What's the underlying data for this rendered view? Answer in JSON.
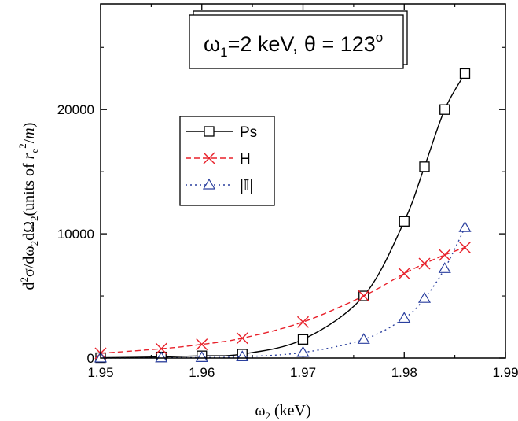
{
  "chart_data": {
    "type": "line",
    "title_parts": {
      "omega": "ω",
      "omega_sub": "1",
      "rest": "=2 keV, ",
      "theta": "θ",
      "eq": " = 123",
      "deg": "o"
    },
    "xlabel": {
      "omega": "ω",
      "sub": "2",
      "unit": " (keV)"
    },
    "ylabel": {
      "p1": "d",
      "p1_sup": "2",
      "p2": "σ/dω",
      "p2_sub": "2",
      "p3": "dΩ",
      "p3_sub": "2",
      "p4": "(units of ",
      "r": "r",
      "r_sub": "e",
      "r_sup": "2",
      "p5": "/",
      "m": "m",
      "p6": ")"
    },
    "xlim": [
      1.95,
      1.99
    ],
    "ylim": [
      0,
      28500
    ],
    "x_ticks": [
      1.95,
      1.96,
      1.97,
      1.98,
      1.99
    ],
    "x_tick_labels": [
      "1.95",
      "1.96",
      "1.97",
      "1.98",
      "1.99"
    ],
    "y_ticks": [
      0,
      10000,
      20000
    ],
    "y_tick_labels": [
      "0",
      "10000",
      "20000"
    ],
    "legend_position": "upper-left",
    "series": [
      {
        "name": "Ps",
        "color": "#000000",
        "marker": "square",
        "dash": "solid",
        "x": [
          1.95,
          1.956,
          1.96,
          1.964,
          1.97,
          1.976,
          1.98,
          1.982,
          1.984,
          1.986
        ],
        "y": [
          30,
          90,
          180,
          320,
          1500,
          5000,
          11000,
          15400,
          20000,
          22900
        ]
      },
      {
        "name": "H",
        "color": "#e8202a",
        "marker": "x",
        "dash": "dashed",
        "x": [
          1.95,
          1.956,
          1.96,
          1.964,
          1.97,
          1.976,
          1.98,
          1.982,
          1.984,
          1.986
        ],
        "y": [
          380,
          750,
          1100,
          1600,
          2900,
          5000,
          6800,
          7600,
          8300,
          8900
        ]
      },
      {
        "name": "|𝕀|",
        "color": "#2a3f9e",
        "marker": "triangle",
        "dash": "dotted",
        "x": [
          1.95,
          1.956,
          1.96,
          1.964,
          1.97,
          1.976,
          1.98,
          1.982,
          1.984,
          1.986
        ],
        "y": [
          5,
          15,
          40,
          100,
          450,
          1500,
          3200,
          4800,
          7200,
          10500
        ]
      }
    ]
  }
}
